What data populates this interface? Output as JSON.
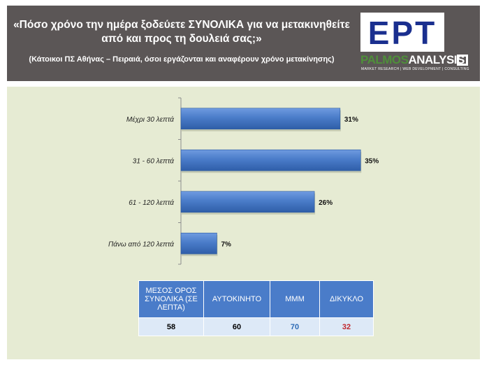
{
  "header": {
    "title": "«Πόσο χρόνο την ημέρα ξοδεύετε ΣΥΝΟΛΙΚΑ για να μετακινηθείτε από και προς τη δουλειά σας;»",
    "subtitle": "(Κάτοικοι ΠΣ Αθήνας – Πειραιά, όσοι εργάζονται και αναφέρουν χρόνο μετακίνησης)"
  },
  "logos": {
    "ert": "ΕΡΤ",
    "palmos_a": "PALMOS",
    "palmos_b": "ANALYSIS",
    "palmos_tagline": "MARKET RESEARCH | WEB DEVELOPMENT | CONSULTING"
  },
  "chart_data": {
    "type": "bar",
    "orientation": "horizontal",
    "categories": [
      "Μέχρι 30 λεπτά",
      "31 - 60 λεπτά",
      "61 - 120 λεπτά",
      "Πάνω από 120 λεπτά"
    ],
    "values": [
      31,
      35,
      26,
      7
    ],
    "value_labels": [
      "31%",
      "35%",
      "26%",
      "7%"
    ],
    "unit": "%",
    "xlim": [
      0,
      60
    ],
    "grid": false,
    "bar_color": "#4a7cc9"
  },
  "table": {
    "headers": [
      "ΜΕΣΟΣ ΟΡΟΣ ΣΥΝΟΛΙΚΑ (ΣΕ ΛΕΠΤΑ)",
      "ΑΥΤΟΚΙΝΗΤΟ",
      "ΜΜΜ",
      "ΔΙΚΥΚΛΟ"
    ],
    "values": [
      "58",
      "60",
      "70",
      "32"
    ],
    "value_colors": [
      "#000000",
      "#000000",
      "#2d6bb5",
      "#c0272d"
    ]
  }
}
